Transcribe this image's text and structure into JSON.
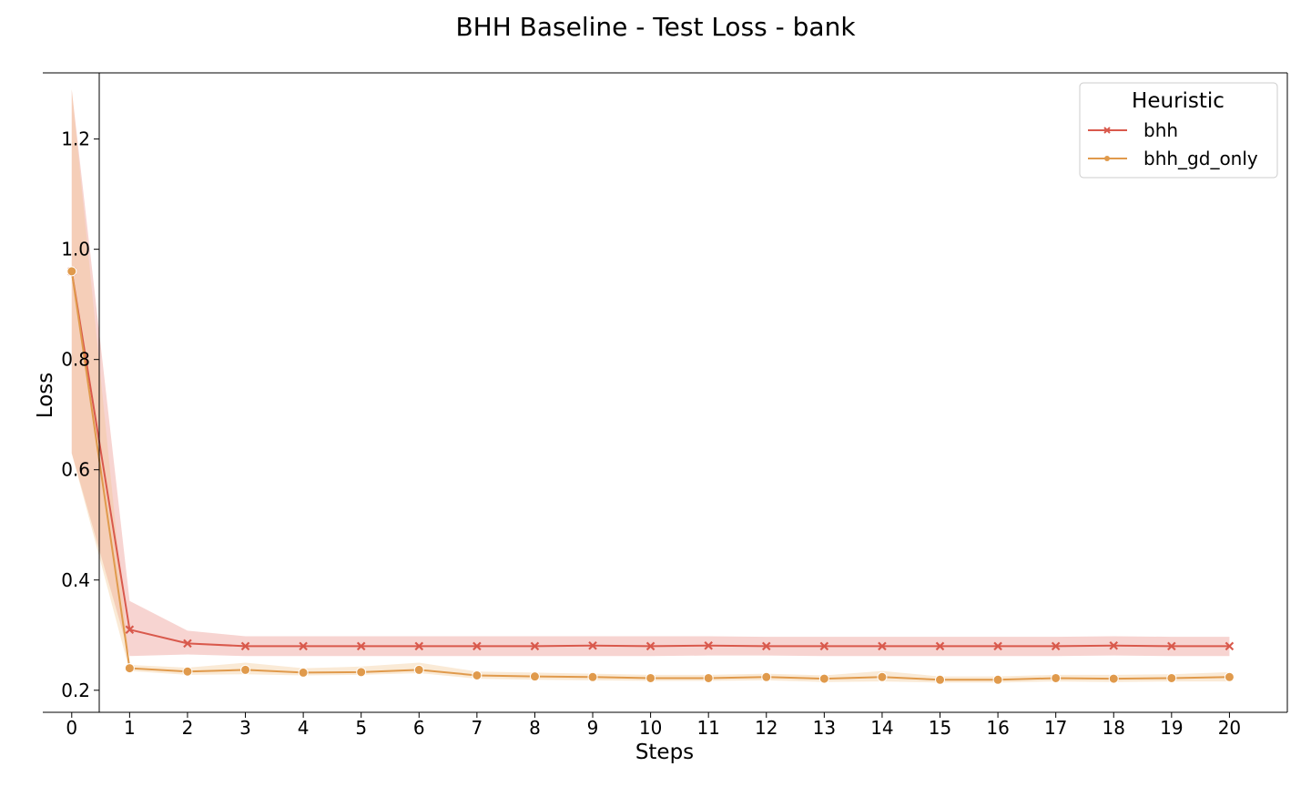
{
  "chart_data": {
    "type": "line",
    "title": "BHH Baseline - Test Loss - bank",
    "xlabel": "Steps",
    "ylabel": "Loss",
    "x": [
      0,
      1,
      2,
      3,
      4,
      5,
      6,
      7,
      8,
      9,
      10,
      11,
      12,
      13,
      14,
      15,
      16,
      17,
      18,
      19,
      20
    ],
    "xlim": [
      -0.5,
      21
    ],
    "ylim": [
      0.16,
      1.32
    ],
    "xticks": [
      "0",
      "1",
      "2",
      "3",
      "4",
      "5",
      "6",
      "7",
      "8",
      "9",
      "10",
      "11",
      "12",
      "13",
      "14",
      "15",
      "16",
      "17",
      "18",
      "19",
      "20"
    ],
    "yticks": [
      {
        "value": 0.2,
        "label": "0.2"
      },
      {
        "value": 0.4,
        "label": "0.4"
      },
      {
        "value": 0.6,
        "label": "0.6"
      },
      {
        "value": 0.8,
        "label": "0.8"
      },
      {
        "value": 1.0,
        "label": "1.0"
      },
      {
        "value": 1.2,
        "label": "1.2"
      }
    ],
    "grid": false,
    "legend": {
      "title": "Heuristic",
      "placement": "top-right"
    },
    "series": [
      {
        "name": "bhh",
        "color": "#d9594c",
        "band_color": "#e8857a",
        "marker": "x",
        "values": [
          0.96,
          0.31,
          0.285,
          0.28,
          0.28,
          0.28,
          0.28,
          0.28,
          0.28,
          0.281,
          0.28,
          0.281,
          0.28,
          0.28,
          0.28,
          0.28,
          0.28,
          0.28,
          0.281,
          0.28,
          0.28
        ],
        "lower": [
          0.63,
          0.262,
          0.265,
          0.262,
          0.262,
          0.262,
          0.262,
          0.262,
          0.262,
          0.262,
          0.262,
          0.263,
          0.263,
          0.262,
          0.262,
          0.262,
          0.262,
          0.262,
          0.263,
          0.262,
          0.262
        ],
        "upper": [
          1.29,
          0.362,
          0.308,
          0.298,
          0.298,
          0.298,
          0.298,
          0.298,
          0.298,
          0.298,
          0.298,
          0.298,
          0.297,
          0.297,
          0.297,
          0.297,
          0.297,
          0.297,
          0.298,
          0.297,
          0.297
        ]
      },
      {
        "name": "bhh_gd_only",
        "color": "#e09a4c",
        "band_color": "#f0c48a",
        "marker": "o",
        "values": [
          0.96,
          0.24,
          0.234,
          0.237,
          0.232,
          0.233,
          0.237,
          0.227,
          0.225,
          0.224,
          0.222,
          0.222,
          0.224,
          0.221,
          0.224,
          0.219,
          0.219,
          0.222,
          0.221,
          0.222,
          0.224
        ],
        "lower": [
          0.63,
          0.235,
          0.228,
          0.229,
          0.227,
          0.228,
          0.231,
          0.221,
          0.219,
          0.218,
          0.217,
          0.217,
          0.218,
          0.215,
          0.216,
          0.214,
          0.214,
          0.216,
          0.215,
          0.216,
          0.216
        ],
        "upper": [
          1.29,
          0.246,
          0.241,
          0.25,
          0.24,
          0.243,
          0.25,
          0.234,
          0.232,
          0.23,
          0.228,
          0.228,
          0.23,
          0.227,
          0.235,
          0.225,
          0.225,
          0.228,
          0.228,
          0.229,
          0.233
        ]
      }
    ]
  }
}
